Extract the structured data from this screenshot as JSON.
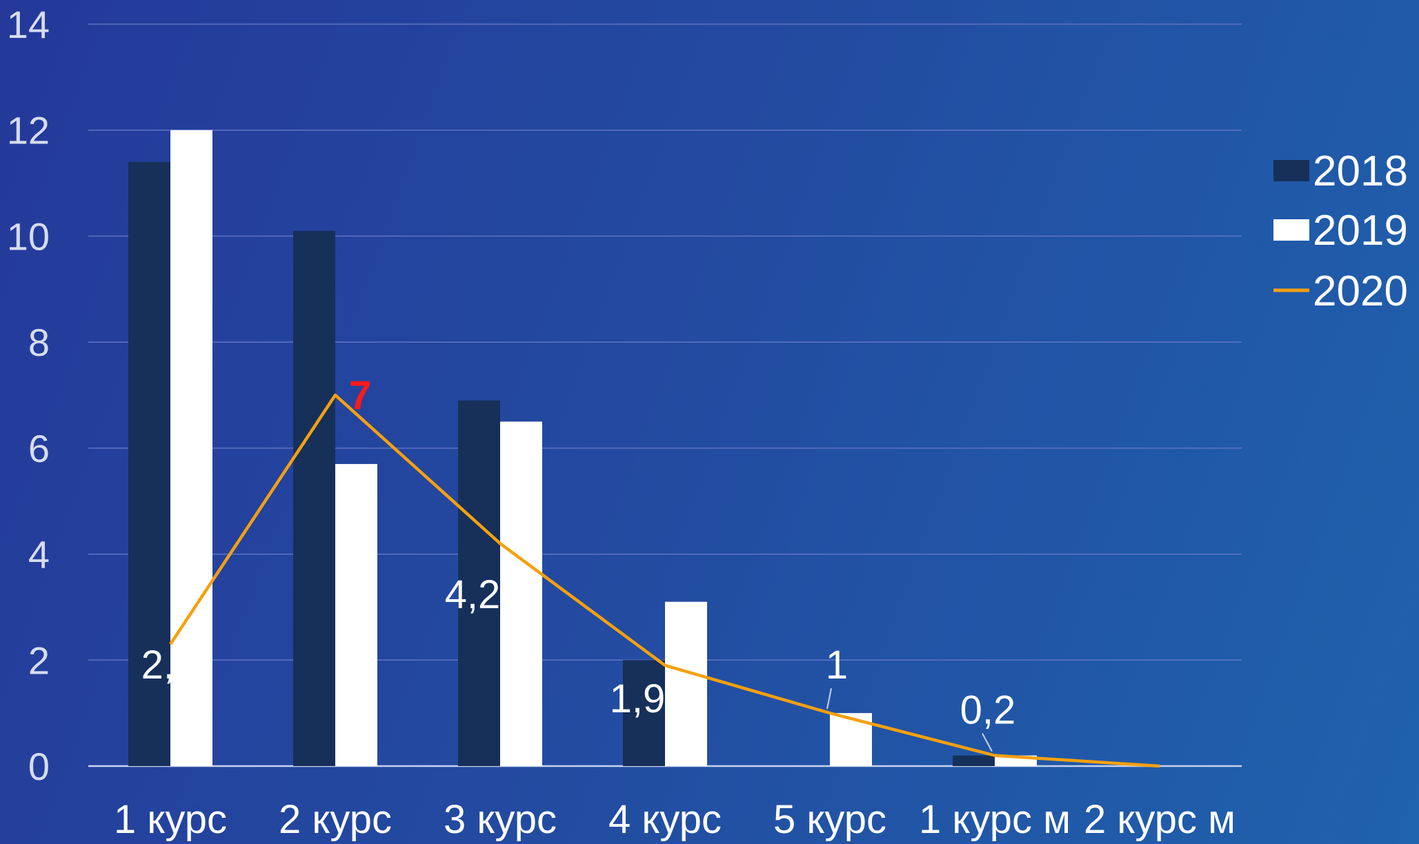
{
  "chart_data": {
    "type": "bar",
    "categories": [
      "1 курс",
      "2 курс",
      "3 курс",
      "4 курс",
      "5 курс",
      "1  курс м",
      "2 курс м"
    ],
    "ylim": [
      0,
      14
    ],
    "yticks": [
      0,
      2,
      4,
      6,
      8,
      10,
      12,
      14
    ],
    "grid": true,
    "legend_position": "right",
    "series": [
      {
        "name": "2018",
        "kind": "bar",
        "color": "#16305a",
        "values": [
          11.4,
          10.1,
          6.9,
          2.0,
          0,
          0.2,
          0
        ]
      },
      {
        "name": "2019",
        "kind": "bar",
        "color": "#ffffff",
        "values": [
          12.0,
          5.7,
          6.5,
          3.1,
          1.0,
          0.2,
          0
        ]
      },
      {
        "name": "2020",
        "kind": "line",
        "color": "#f5a00f",
        "values": [
          2.3,
          7,
          4.2,
          1.9,
          1,
          0.2,
          0
        ]
      }
    ],
    "data_labels": [
      {
        "series": "2020",
        "index": 0,
        "text": "2,3",
        "highlight": false
      },
      {
        "series": "2020",
        "index": 1,
        "text": "7",
        "highlight": true
      },
      {
        "series": "2020",
        "index": 2,
        "text": "4,2",
        "highlight": false
      },
      {
        "series": "2020",
        "index": 3,
        "text": "1,9",
        "highlight": false
      },
      {
        "series": "2020",
        "index": 4,
        "text": "1",
        "highlight": false
      },
      {
        "series": "2020",
        "index": 5,
        "text": "0,2",
        "highlight": false
      }
    ],
    "colors": {
      "highlight_label": "#ff1a1a",
      "tick_label": "#d7dcee",
      "gridline": "#5f74c4"
    }
  }
}
